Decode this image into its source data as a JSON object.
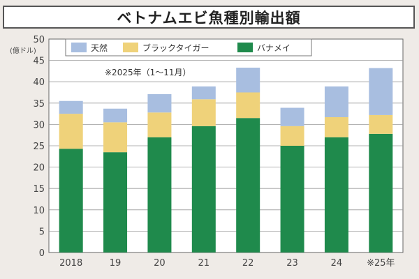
{
  "colors": {
    "natural": "#a8bee0",
    "black_tiger": "#efd27a",
    "vannamei": "#1f8a4c",
    "grid": "#9a9a9a",
    "panel_bg": "#ffffff"
  },
  "chart_data": {
    "type": "bar",
    "stacked": true,
    "title": "ベトナムエビ魚種別輸出額",
    "unit_label": "(億ドル)",
    "note": "※2025年（1～11月）",
    "categories": [
      "2018",
      "19",
      "20",
      "21",
      "22",
      "23",
      "24",
      "※25年"
    ],
    "series": [
      {
        "name": "バナメイ",
        "color_key": "vannamei",
        "values": [
          24.3,
          23.5,
          27.0,
          29.6,
          31.5,
          25.0,
          27.0,
          27.8
        ]
      },
      {
        "name": "ブラックタイガー",
        "color_key": "black_tiger",
        "values": [
          8.2,
          7.0,
          5.8,
          6.3,
          6.0,
          4.6,
          4.7,
          4.4
        ]
      },
      {
        "name": "天然",
        "color_key": "natural",
        "values": [
          3.0,
          3.2,
          4.3,
          3.0,
          5.8,
          4.3,
          7.2,
          11.0
        ]
      }
    ],
    "legend_order": [
      "天然",
      "ブラックタイガー",
      "バナメイ"
    ],
    "ylim": [
      0,
      50
    ],
    "yticks": [
      0,
      5,
      10,
      15,
      20,
      25,
      30,
      35,
      40,
      45,
      50
    ],
    "grid": true,
    "legend_position": "top-left"
  }
}
